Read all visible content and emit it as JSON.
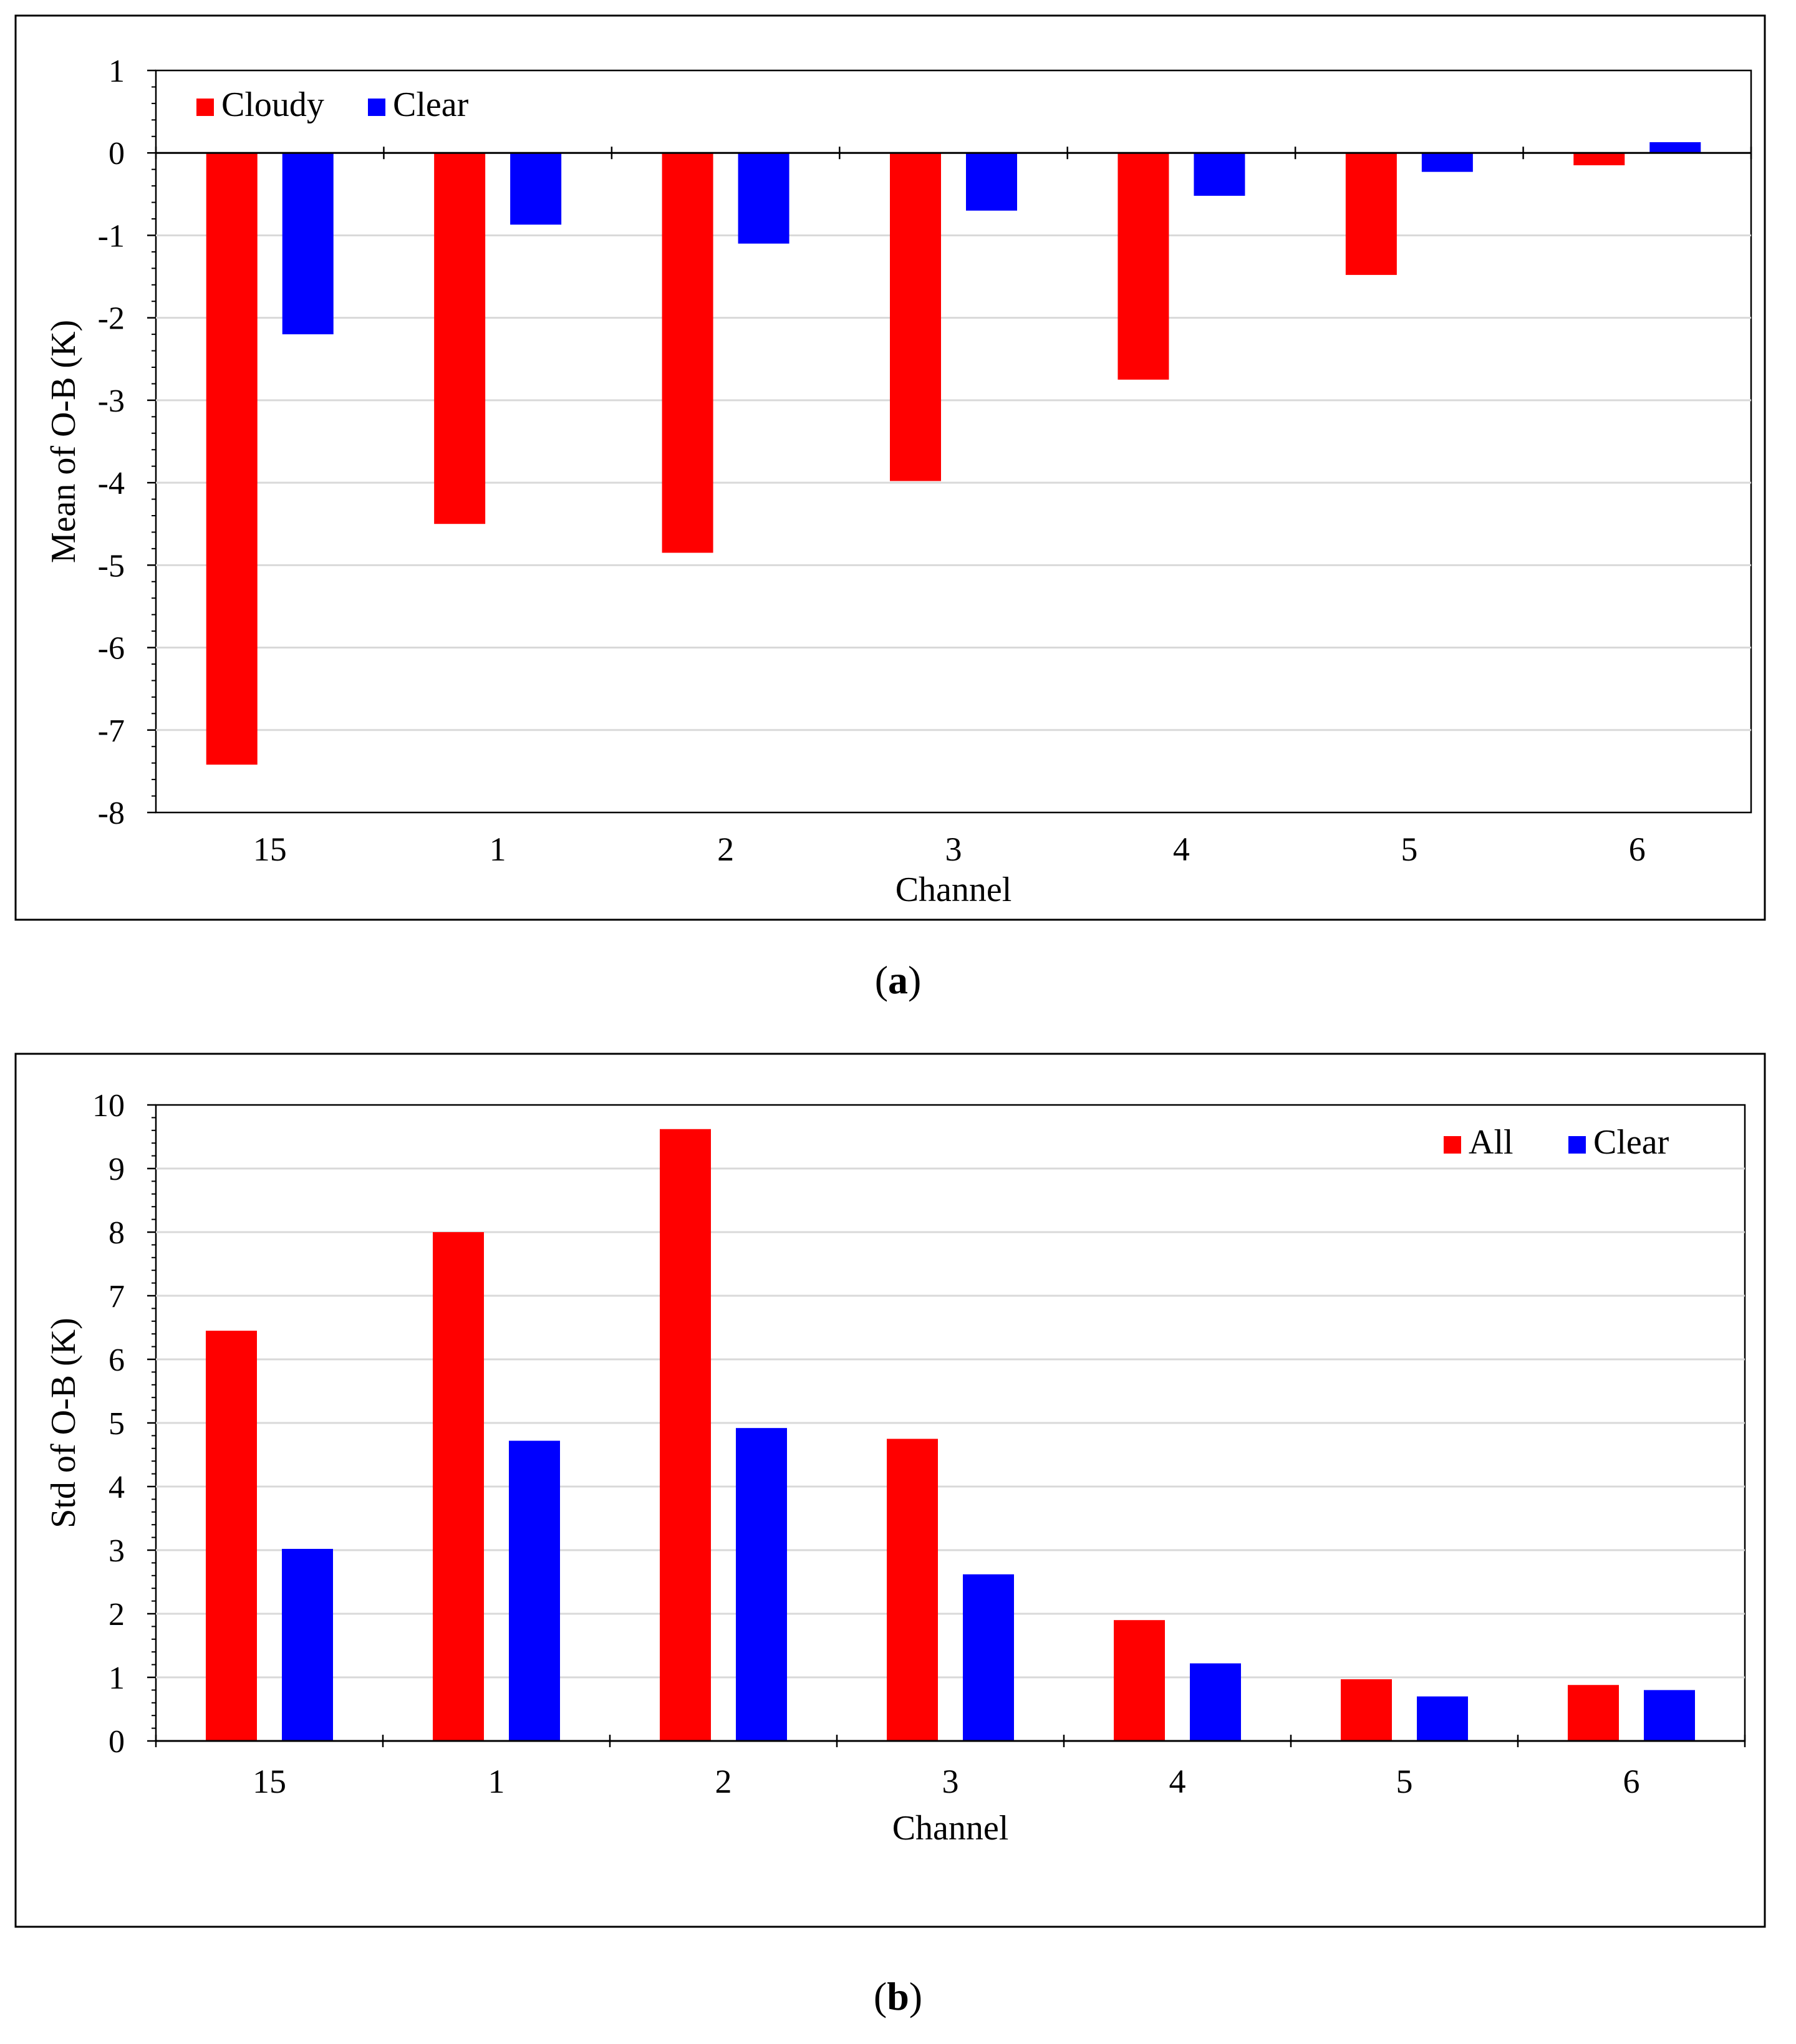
{
  "chart_data": [
    {
      "type": "bar",
      "caption_label": "a",
      "xlabel": "Channel",
      "ylabel": "Mean of O-B (K)",
      "ylim": [
        -8,
        1
      ],
      "yticks": [
        "1",
        "0",
        "-1",
        "-2",
        "-3",
        "-4",
        "-5",
        "-6",
        "-7",
        "-8"
      ],
      "grid": true,
      "legend_position": "top-left",
      "categories": [
        "15",
        "1",
        "2",
        "3",
        "4",
        "5",
        "6"
      ],
      "series": [
        {
          "name": "Cloudy",
          "color": "#ff0000",
          "values": [
            -7.42,
            -4.5,
            -4.85,
            -3.98,
            -2.75,
            -1.48,
            -0.15
          ]
        },
        {
          "name": "Clear",
          "color": "#0000ff",
          "values": [
            -2.2,
            -0.87,
            -1.1,
            -0.7,
            -0.52,
            -0.23,
            0.13
          ]
        }
      ]
    },
    {
      "type": "bar",
      "caption_label": "b",
      "xlabel": "Channel",
      "ylabel": "Std of O-B (K)",
      "ylim": [
        0,
        10
      ],
      "yticks": [
        "10",
        "9",
        "8",
        "7",
        "6",
        "5",
        "4",
        "3",
        "2",
        "1",
        "0"
      ],
      "grid": true,
      "legend_position": "top-right",
      "categories": [
        "15",
        "1",
        "2",
        "3",
        "4",
        "5",
        "6"
      ],
      "series": [
        {
          "name": "All",
          "color": "#ff0000",
          "values": [
            6.45,
            8.0,
            9.62,
            4.75,
            1.9,
            0.97,
            0.88
          ]
        },
        {
          "name": "Clear",
          "color": "#0000ff",
          "values": [
            3.02,
            4.72,
            4.92,
            2.62,
            1.22,
            0.7,
            0.8
          ]
        }
      ]
    }
  ]
}
